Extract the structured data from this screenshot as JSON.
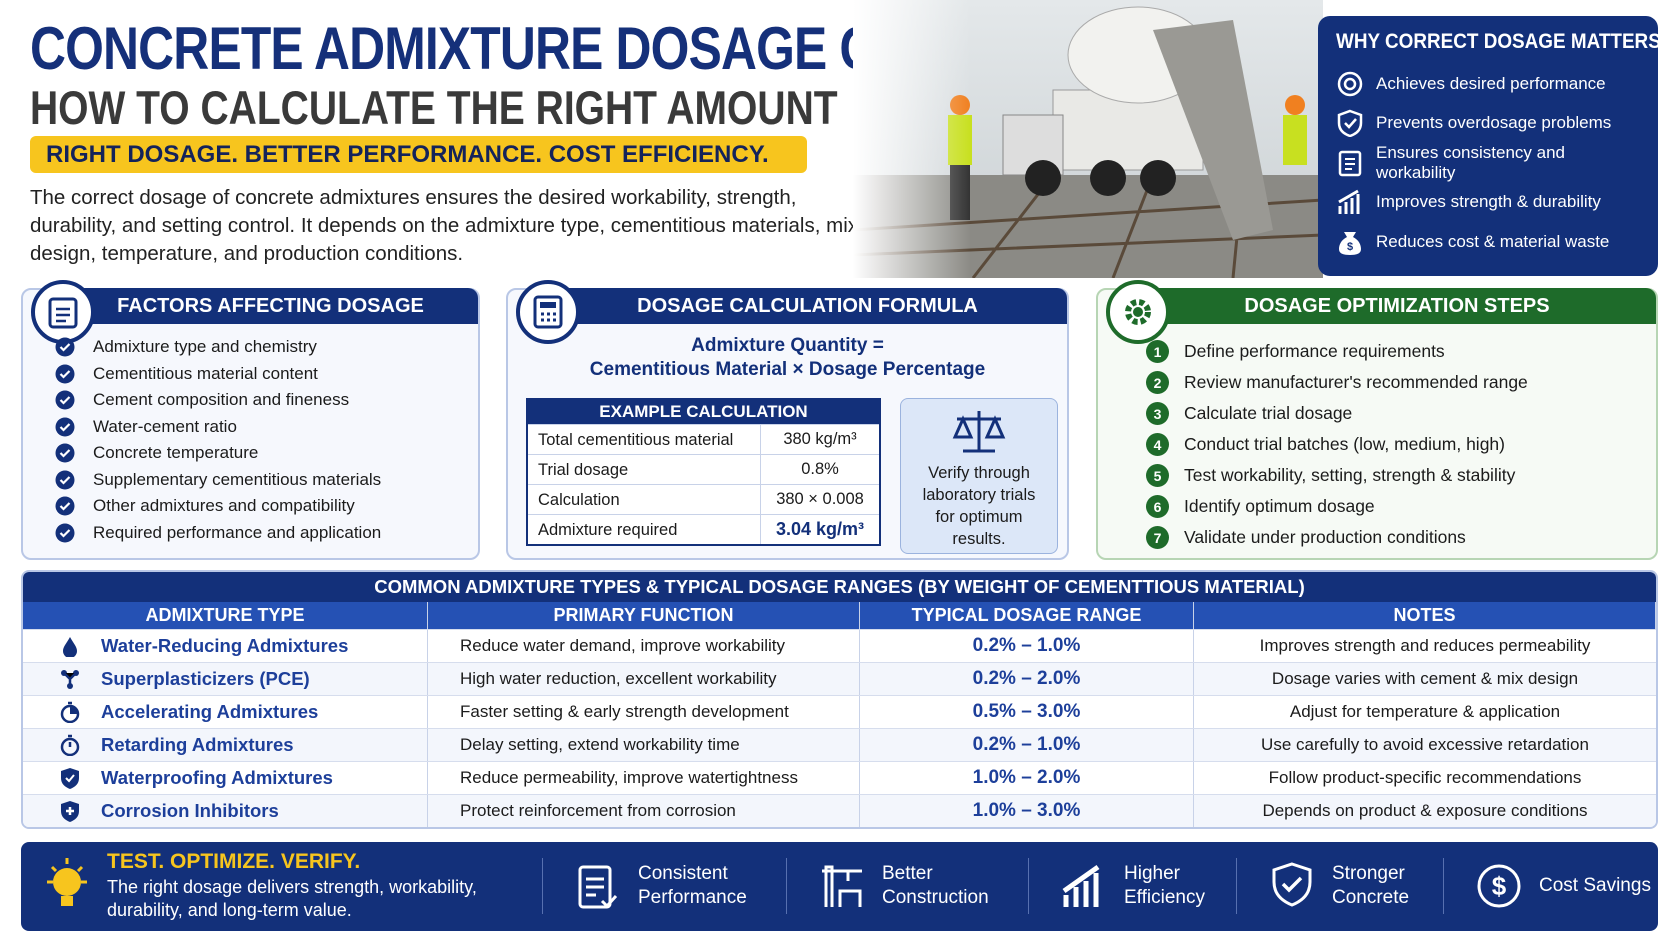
{
  "header": {
    "title": "CONCRETE ADMIXTURE DOSAGE GUIDE:",
    "subtitle": "HOW TO CALCULATE THE RIGHT AMOUNT",
    "tagline": "RIGHT DOSAGE. BETTER PERFORMANCE. COST EFFICIENCY.",
    "intro": "The correct dosage of concrete admixtures ensures the desired workability, strength, durability, and setting control. It depends on the admixture type, cementitious materials, mix design, temperature, and production conditions."
  },
  "why": {
    "title": "WHY CORRECT DOSAGE MATTERS?",
    "items": [
      "Achieves desired performance",
      "Prevents overdosage problems",
      "Ensures consistency and workability",
      "Improves strength & durability",
      "Reduces cost & material waste"
    ]
  },
  "factors": {
    "title": "FACTORS AFFECTING DOSAGE",
    "items": [
      "Admixture type and chemistry",
      "Cementitious material content",
      "Cement composition and fineness",
      "Water-cement ratio",
      "Concrete temperature",
      "Supplementary cementitious materials",
      "Other admixtures and compatibility",
      "Required performance and application"
    ]
  },
  "formula": {
    "title": "DOSAGE CALCULATION FORMULA",
    "lines": [
      "Admixture Quantity =",
      "Cementitious Material × Dosage Percentage"
    ],
    "example": {
      "title": "EXAMPLE CALCULATION",
      "rows": [
        [
          "Total cementitious material",
          "380 kg/m³"
        ],
        [
          "Trial dosage",
          "0.8%"
        ],
        [
          "Calculation",
          "380 × 0.008"
        ],
        [
          "Admixture required",
          "3.04 kg/m³"
        ]
      ]
    },
    "note": "Verify through laboratory trials for optimum results."
  },
  "steps": {
    "title": "DOSAGE OPTIMIZATION STEPS",
    "items": [
      {
        "number": "1",
        "text": "Define performance requirements"
      },
      {
        "number": "2",
        "text": "Review manufacturer's recommended range"
      },
      {
        "number": "3",
        "text": "Calculate trial dosage"
      },
      {
        "number": "4",
        "text": "Conduct trial batches (low, medium, high)"
      },
      {
        "number": "5",
        "text": "Test workability, setting, strength & stability"
      },
      {
        "number": "6",
        "text": "Identify optimum dosage"
      },
      {
        "number": "7",
        "text": "Validate under production conditions"
      }
    ]
  },
  "table": {
    "title": "COMMON ADMIXTURE TYPES & TYPICAL DOSAGE RANGES (BY WEIGHT OF CEMENTTIOUS MATERIAL)",
    "headers": [
      "ADMIXTURE TYPE",
      "PRIMARY FUNCTION",
      "TYPICAL DOSAGE RANGE",
      "NOTES"
    ],
    "rows": [
      [
        "Water-Reducing Admixtures",
        "Reduce water demand, improve workability",
        "0.2% – 1.0%",
        "Improves strength and reduces permeability"
      ],
      [
        "Superplasticizers (PCE)",
        "High water reduction, excellent workability",
        "0.2% – 2.0%",
        "Dosage varies with cement & mix design"
      ],
      [
        "Accelerating Admixtures",
        "Faster setting & early strength development",
        "0.5% – 3.0%",
        "Adjust for temperature & application"
      ],
      [
        "Retarding Admixtures",
        "Delay setting, extend workability time",
        "0.2% – 1.0%",
        "Use carefully to avoid excessive retardation"
      ],
      [
        "Waterproofing Admixtures",
        "Reduce permeability, improve watertightness",
        "1.0% – 2.0%",
        "Follow product-specific recommendations"
      ],
      [
        "Corrosion Inhibitors",
        "Protect reinforcement from corrosion",
        "1.0% – 3.0%",
        "Depends on product & exposure conditions"
      ]
    ]
  },
  "footer": {
    "headline": "TEST. OPTIMIZE. VERIFY.",
    "text": "The right dosage delivers strength, workability, durability, and long-term value.",
    "benefits": [
      "Consistent Performance",
      "Better Construction",
      "Higher Efficiency",
      "Stronger Concrete",
      "Cost Savings"
    ]
  }
}
